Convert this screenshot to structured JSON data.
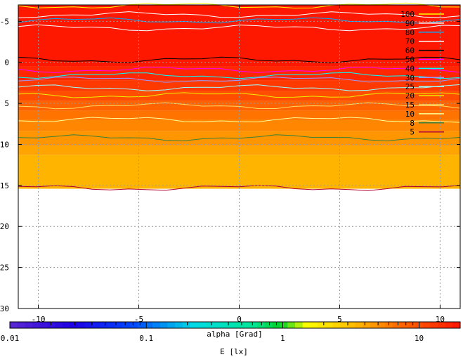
{
  "chart_data": {
    "type": "heatmap",
    "title": "",
    "plot": {
      "xlim": [
        -11,
        11
      ],
      "ylim_top": -7,
      "ylim_bottom": 30,
      "y_inverted": true,
      "x_ticks": [
        -10,
        -5,
        0,
        5,
        10
      ],
      "x_tick_labels": [
        "-10",
        "-5",
        "0",
        "5",
        "10"
      ],
      "y_ticks": [
        -5,
        0,
        5,
        10,
        15,
        20,
        25,
        30
      ],
      "y_tick_labels": [
        "-5",
        "0",
        "5",
        "10",
        "15",
        "20",
        "25",
        "30"
      ],
      "grid": true,
      "data_extent_y": [
        -7,
        15.4
      ],
      "shaded_bands": [
        {
          "y0": -7.0,
          "y1": 0.5,
          "color": "#ff1800"
        },
        {
          "y0": 0.5,
          "y1": 2.2,
          "color": "#ff2600"
        },
        {
          "y0": 2.2,
          "y1": 3.5,
          "color": "#ff3a00"
        },
        {
          "y0": 3.5,
          "y1": 4.7,
          "color": "#ff4e00"
        },
        {
          "y0": 4.7,
          "y1": 5.9,
          "color": "#ff6200"
        },
        {
          "y0": 5.9,
          "y1": 7.0,
          "color": "#ff7400"
        },
        {
          "y0": 7.0,
          "y1": 8.4,
          "color": "#ff8600"
        },
        {
          "y0": 8.4,
          "y1": 10.2,
          "color": "#ff9600"
        },
        {
          "y0": 10.2,
          "y1": 11.3,
          "color": "#ffa400"
        },
        {
          "y0": 11.3,
          "y1": 15.4,
          "color": "#ffb400"
        }
      ],
      "contour_series": [
        {
          "level": "100",
          "color": "#ffff00",
          "y": -6.9
        },
        {
          "level": "90",
          "color": "#ffffff",
          "y": -5.8
        },
        {
          "level": "80",
          "color": "#00aaff",
          "y": -5.1
        },
        {
          "level": "70",
          "color": "#ffffff",
          "y": -4.2
        },
        {
          "level": "60",
          "color": "#000000",
          "y": -0.3
        },
        {
          "level": "50",
          "color": "#ff00ff",
          "y": 0.9
        },
        {
          "level": "40",
          "color": "#00ffff",
          "y": 1.6
        },
        {
          "level": "30",
          "color": "#9999ff",
          "y": 2.1
        },
        {
          "level": "25",
          "color": "#99ffff",
          "y": 3.1
        },
        {
          "level": "20",
          "color": "#eeee00",
          "y": 4.0
        },
        {
          "level": "15",
          "color": "#ffdd66",
          "y": 5.3
        },
        {
          "level": "10",
          "color": "#ffff99",
          "y": 7.0
        },
        {
          "level": "8",
          "color": "#3b7f3b",
          "y": 9.2
        },
        {
          "level": "5",
          "color": "#b00030",
          "y": 15.3
        }
      ],
      "legend": [
        "100",
        "90",
        "80",
        "70",
        "60",
        "50",
        "40",
        "30",
        "25",
        "20",
        "15",
        "10",
        "8",
        "5"
      ]
    },
    "colorbar": {
      "scale": "log",
      "range": [
        0.01,
        20
      ],
      "tick_labels": [
        {
          "value": 0.01,
          "label": "0.01"
        },
        {
          "value": 0.1,
          "label": "0.1"
        },
        {
          "value": 1,
          "label": "1"
        },
        {
          "value": 10,
          "label": "10"
        }
      ],
      "legend_title": "alpha [Grad]",
      "axis_title": "E [lx]"
    }
  }
}
